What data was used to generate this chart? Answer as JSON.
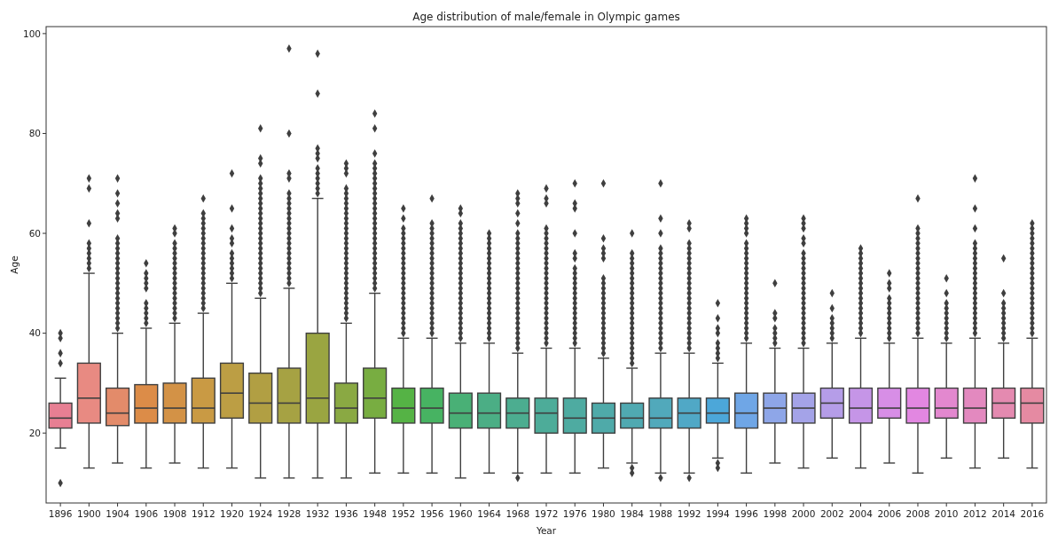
{
  "chart_data": {
    "type": "box",
    "title": "Age distribution of male/female in Olympic games",
    "xlabel": "Year",
    "ylabel": "Age",
    "categories": [
      "1896",
      "1900",
      "1904",
      "1906",
      "1908",
      "1912",
      "1920",
      "1924",
      "1928",
      "1932",
      "1936",
      "1948",
      "1952",
      "1956",
      "1960",
      "1964",
      "1968",
      "1972",
      "1976",
      "1980",
      "1984",
      "1988",
      "1992",
      "1994",
      "1996",
      "1998",
      "2000",
      "2002",
      "2004",
      "2006",
      "2008",
      "2010",
      "2012",
      "2014",
      "2016"
    ],
    "colors": [
      "#e77f93",
      "#e88a82",
      "#e38b6a",
      "#dc8c48",
      "#d39246",
      "#c99a44",
      "#bc9e44",
      "#b19f43",
      "#a6a243",
      "#9aa541",
      "#8aa943",
      "#78ad41",
      "#55b345",
      "#47b362",
      "#49b076",
      "#4bae85",
      "#4cad90",
      "#4dac99",
      "#4eaba1",
      "#4faaa9",
      "#50a9b1",
      "#51a9bb",
      "#50a8c6",
      "#4ca7d9",
      "#6fa6e6",
      "#8ea6e8",
      "#a4a3e8",
      "#b59de8",
      "#c595e7",
      "#d78ee6",
      "#e287e1",
      "#e388cf",
      "#e389bf",
      "#e48ab0",
      "#e58aa2"
    ],
    "marker": "diamond",
    "ylim": [
      6,
      101.4
    ],
    "yticks": [
      20,
      40,
      60,
      80,
      100
    ],
    "boxes": [
      {
        "low": 17,
        "q1": 21,
        "median": 23,
        "q3": 26,
        "high": 31,
        "outliers": [
          10,
          34,
          36,
          39,
          40
        ]
      },
      {
        "low": 13,
        "q1": 22,
        "median": 27,
        "q3": 34,
        "high": 52,
        "outliers": [
          53,
          54,
          55,
          56,
          57,
          58,
          62,
          69,
          71
        ]
      },
      {
        "low": 14,
        "q1": 21.5,
        "median": 24,
        "q3": 29,
        "high": 40,
        "outliers": [
          41,
          42,
          43,
          44,
          45,
          46,
          47,
          48,
          49,
          50,
          51,
          52,
          53,
          54,
          55,
          56,
          57,
          58,
          59,
          63,
          64,
          66,
          68,
          71
        ]
      },
      {
        "low": 13,
        "q1": 22,
        "median": 25,
        "q3": 29.7,
        "high": 41,
        "outliers": [
          42,
          43,
          44,
          45,
          46,
          49,
          50,
          51,
          52,
          54
        ]
      },
      {
        "low": 14,
        "q1": 22,
        "median": 25,
        "q3": 30,
        "high": 42,
        "outliers": [
          43,
          44,
          45,
          46,
          47,
          48,
          49,
          50,
          51,
          52,
          53,
          54,
          55,
          56,
          57,
          58,
          60,
          61
        ]
      },
      {
        "low": 13,
        "q1": 22,
        "median": 25,
        "q3": 31,
        "high": 44,
        "outliers": [
          45,
          46,
          47,
          48,
          49,
          50,
          51,
          52,
          53,
          54,
          55,
          56,
          57,
          58,
          59,
          60,
          61,
          62,
          63,
          64,
          67
        ]
      },
      {
        "low": 13,
        "q1": 23,
        "median": 28,
        "q3": 34,
        "high": 50,
        "outliers": [
          51,
          52,
          53,
          54,
          55,
          56,
          58,
          59,
          61,
          65,
          72
        ]
      },
      {
        "low": 11,
        "q1": 22,
        "median": 26,
        "q3": 32,
        "high": 47,
        "outliers": [
          48,
          49,
          50,
          51,
          52,
          53,
          54,
          55,
          56,
          57,
          58,
          59,
          60,
          61,
          62,
          63,
          64,
          65,
          66,
          67,
          68,
          69,
          70,
          71,
          74,
          75,
          81
        ]
      },
      {
        "low": 11,
        "q1": 22,
        "median": 26,
        "q3": 33,
        "high": 49,
        "outliers": [
          50,
          51,
          52,
          53,
          54,
          55,
          56,
          57,
          58,
          59,
          60,
          61,
          62,
          63,
          64,
          65,
          66,
          67,
          68,
          71,
          72,
          80,
          97
        ]
      },
      {
        "low": 11,
        "q1": 22,
        "median": 27,
        "q3": 40,
        "high": 67,
        "outliers": [
          68,
          69,
          70,
          71,
          72,
          73,
          75,
          76,
          77,
          88,
          96
        ]
      },
      {
        "low": 11,
        "q1": 22,
        "median": 25,
        "q3": 30,
        "high": 42,
        "outliers": [
          43,
          44,
          45,
          46,
          47,
          48,
          49,
          50,
          51,
          52,
          53,
          54,
          55,
          56,
          57,
          58,
          59,
          60,
          61,
          62,
          63,
          64,
          65,
          66,
          67,
          68,
          69,
          72,
          73,
          74
        ]
      },
      {
        "low": 12,
        "q1": 23,
        "median": 27,
        "q3": 33,
        "high": 48,
        "outliers": [
          49,
          50,
          51,
          52,
          53,
          54,
          55,
          56,
          57,
          58,
          59,
          60,
          61,
          62,
          63,
          64,
          65,
          66,
          67,
          68,
          69,
          70,
          71,
          72,
          73,
          74,
          76,
          81,
          84
        ]
      },
      {
        "low": 12,
        "q1": 22,
        "median": 25,
        "q3": 29,
        "high": 39,
        "outliers": [
          40,
          41,
          42,
          43,
          44,
          45,
          46,
          47,
          48,
          49,
          50,
          51,
          52,
          53,
          54,
          55,
          56,
          57,
          58,
          59,
          60,
          61,
          63,
          65
        ]
      },
      {
        "low": 12,
        "q1": 22,
        "median": 25,
        "q3": 29,
        "high": 39,
        "outliers": [
          40,
          41,
          42,
          43,
          44,
          45,
          46,
          47,
          48,
          49,
          50,
          51,
          52,
          53,
          54,
          55,
          56,
          57,
          58,
          59,
          60,
          61,
          62,
          67
        ]
      },
      {
        "low": 11,
        "q1": 21,
        "median": 24,
        "q3": 28,
        "high": 38,
        "outliers": [
          39,
          40,
          41,
          42,
          43,
          44,
          45,
          46,
          47,
          48,
          49,
          50,
          51,
          52,
          53,
          54,
          55,
          56,
          57,
          58,
          59,
          60,
          61,
          62,
          64,
          65
        ]
      },
      {
        "low": 12,
        "q1": 21,
        "median": 24,
        "q3": 28,
        "high": 38,
        "outliers": [
          39,
          40,
          41,
          42,
          43,
          44,
          45,
          46,
          47,
          48,
          49,
          50,
          51,
          52,
          53,
          54,
          55,
          56,
          57,
          58,
          59,
          60
        ]
      },
      {
        "low": 12,
        "q1": 21,
        "median": 24,
        "q3": 27,
        "high": 36,
        "outliers": [
          11,
          37,
          38,
          39,
          40,
          41,
          42,
          43,
          44,
          45,
          46,
          47,
          48,
          49,
          50,
          51,
          52,
          53,
          54,
          55,
          56,
          57,
          58,
          59,
          60,
          62,
          64,
          66,
          67,
          68
        ]
      },
      {
        "low": 12,
        "q1": 20,
        "median": 24,
        "q3": 27,
        "high": 37,
        "outliers": [
          38,
          39,
          40,
          41,
          42,
          43,
          44,
          45,
          46,
          47,
          48,
          49,
          50,
          51,
          52,
          53,
          54,
          55,
          56,
          57,
          58,
          59,
          60,
          61,
          66,
          67,
          69
        ]
      },
      {
        "low": 12,
        "q1": 20,
        "median": 23,
        "q3": 27,
        "high": 37,
        "outliers": [
          38,
          39,
          40,
          41,
          42,
          43,
          44,
          45,
          46,
          47,
          48,
          49,
          50,
          51,
          52,
          53,
          55,
          56,
          60,
          65,
          66,
          70
        ]
      },
      {
        "low": 13,
        "q1": 20,
        "median": 23,
        "q3": 26,
        "high": 35,
        "outliers": [
          36,
          37,
          38,
          39,
          40,
          41,
          42,
          43,
          44,
          45,
          46,
          47,
          48,
          49,
          50,
          51,
          55,
          56,
          57,
          59,
          70
        ]
      },
      {
        "low": 14,
        "q1": 21,
        "median": 23,
        "q3": 26,
        "high": 33,
        "outliers": [
          12,
          13,
          34,
          35,
          36,
          37,
          38,
          39,
          40,
          41,
          42,
          43,
          44,
          45,
          46,
          47,
          48,
          49,
          50,
          51,
          52,
          53,
          54,
          55,
          56,
          60
        ]
      },
      {
        "low": 12,
        "q1": 21,
        "median": 23,
        "q3": 27,
        "high": 36,
        "outliers": [
          11,
          37,
          38,
          39,
          40,
          41,
          42,
          43,
          44,
          45,
          46,
          47,
          48,
          49,
          50,
          51,
          52,
          53,
          54,
          55,
          56,
          57,
          60,
          63,
          70
        ]
      },
      {
        "low": 12,
        "q1": 21,
        "median": 24,
        "q3": 27,
        "high": 36,
        "outliers": [
          11,
          37,
          38,
          39,
          40,
          41,
          42,
          43,
          44,
          45,
          46,
          47,
          48,
          49,
          50,
          51,
          52,
          53,
          54,
          55,
          56,
          57,
          58,
          61,
          62
        ]
      },
      {
        "low": 15,
        "q1": 22,
        "median": 24,
        "q3": 27,
        "high": 34,
        "outliers": [
          13,
          14,
          35,
          36,
          37,
          38,
          40,
          41,
          43,
          46
        ]
      },
      {
        "low": 12,
        "q1": 21,
        "median": 24,
        "q3": 28,
        "high": 38,
        "outliers": [
          39,
          40,
          41,
          42,
          43,
          44,
          45,
          46,
          47,
          48,
          49,
          50,
          51,
          52,
          53,
          54,
          55,
          56,
          57,
          58,
          60,
          61,
          62,
          63
        ]
      },
      {
        "low": 14,
        "q1": 22,
        "median": 25,
        "q3": 28,
        "high": 37,
        "outliers": [
          38,
          39,
          40,
          41,
          43,
          44,
          50
        ]
      },
      {
        "low": 13,
        "q1": 22,
        "median": 25,
        "q3": 28,
        "high": 37,
        "outliers": [
          38,
          39,
          40,
          41,
          42,
          43,
          44,
          45,
          46,
          47,
          48,
          49,
          50,
          51,
          52,
          53,
          54,
          55,
          56,
          58,
          59,
          61,
          62,
          63
        ]
      },
      {
        "low": 15,
        "q1": 23,
        "median": 26,
        "q3": 29,
        "high": 38,
        "outliers": [
          39,
          40,
          41,
          42,
          43,
          45,
          48
        ]
      },
      {
        "low": 13,
        "q1": 22,
        "median": 25,
        "q3": 29,
        "high": 39,
        "outliers": [
          40,
          41,
          42,
          43,
          44,
          45,
          46,
          47,
          48,
          49,
          50,
          51,
          52,
          53,
          54,
          55,
          56,
          57
        ]
      },
      {
        "low": 14,
        "q1": 23,
        "median": 25,
        "q3": 29,
        "high": 38,
        "outliers": [
          39,
          40,
          41,
          42,
          43,
          44,
          45,
          46,
          47,
          49,
          50,
          52
        ]
      },
      {
        "low": 12,
        "q1": 22,
        "median": 25,
        "q3": 29,
        "high": 39,
        "outliers": [
          40,
          41,
          42,
          43,
          44,
          45,
          46,
          47,
          48,
          49,
          50,
          51,
          52,
          53,
          54,
          55,
          56,
          57,
          58,
          59,
          60,
          61,
          67
        ]
      },
      {
        "low": 15,
        "q1": 23,
        "median": 25,
        "q3": 29,
        "high": 38,
        "outliers": [
          39,
          40,
          41,
          42,
          43,
          44,
          45,
          46,
          48,
          51
        ]
      },
      {
        "low": 13,
        "q1": 22,
        "median": 25,
        "q3": 29,
        "high": 39,
        "outliers": [
          40,
          41,
          42,
          43,
          44,
          45,
          46,
          47,
          48,
          49,
          50,
          51,
          52,
          53,
          54,
          55,
          56,
          57,
          58,
          61,
          65,
          71
        ]
      },
      {
        "low": 15,
        "q1": 23,
        "median": 26,
        "q3": 29,
        "high": 38,
        "outliers": [
          39,
          40,
          41,
          42,
          43,
          44,
          45,
          46,
          48,
          55
        ]
      },
      {
        "low": 13,
        "q1": 22,
        "median": 26,
        "q3": 29,
        "high": 39,
        "outliers": [
          40,
          41,
          42,
          43,
          44,
          45,
          46,
          47,
          48,
          49,
          50,
          51,
          52,
          53,
          54,
          55,
          56,
          57,
          58,
          59,
          60,
          61,
          62
        ]
      }
    ]
  }
}
